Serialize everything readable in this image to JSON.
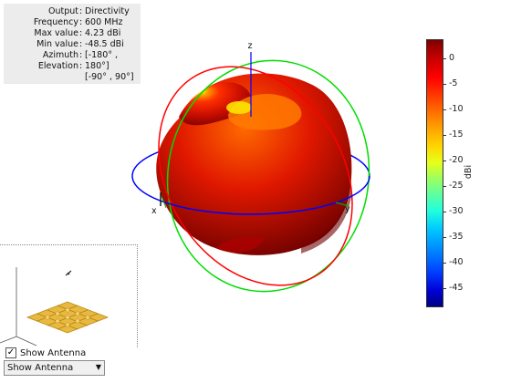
{
  "info": [
    {
      "label": "Output",
      "value": "Directivity"
    },
    {
      "label": "Frequency",
      "value": "600 MHz"
    },
    {
      "label": "Max value",
      "value": "4.23 dBi"
    },
    {
      "label": "Min value",
      "value": "-48.5 dBi"
    },
    {
      "label": "Azimuth",
      "value": "[-180° ,"
    },
    {
      "label": "Elevation",
      "value": "180°]"
    },
    {
      "label": "",
      "value": "[-90° , 90°]"
    }
  ],
  "axes": {
    "x": "x",
    "y": "y",
    "z": "z"
  },
  "colorbar": {
    "unit": "dBi",
    "ticks": [
      "0",
      "-5",
      "-10",
      "-15",
      "-20",
      "-25",
      "-30",
      "-35",
      "-40",
      "-45"
    ]
  },
  "controls": {
    "show_antenna_label": "Show Antenna",
    "show_antenna_checked": true,
    "dropdown_value": "Show Antenna"
  },
  "colors": {
    "pattern_dark": "#8b0000",
    "pattern_mid": "#e02000",
    "pattern_highlight": "#ffee00",
    "xy_circle": "#0000ff",
    "xz_circle": "#ff0000",
    "yz_circle": "#00dd00",
    "antenna": "#e0b030"
  }
}
